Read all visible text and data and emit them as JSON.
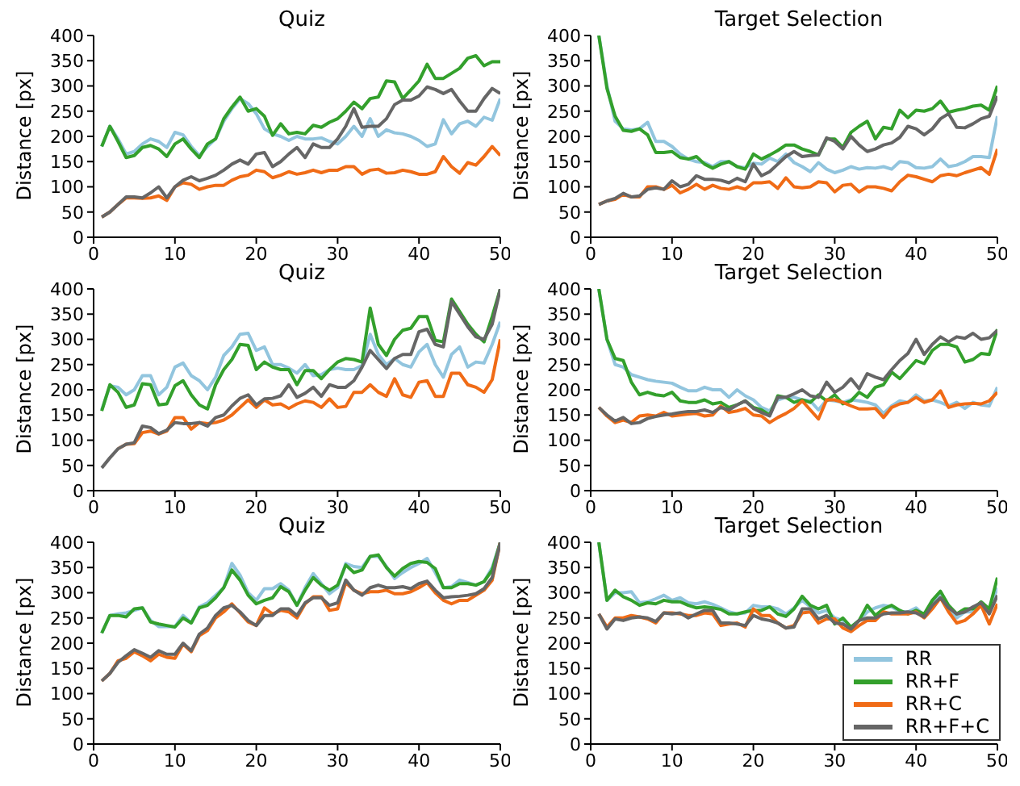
{
  "chart_data": [
    {
      "type": "line",
      "title": "Quiz",
      "ylabel": "Distance [px]",
      "x": [
        1,
        2,
        3,
        4,
        5,
        6,
        7,
        8,
        9,
        10,
        11,
        12,
        13,
        14,
        15,
        16,
        17,
        18,
        19,
        20,
        21,
        22,
        23,
        24,
        25,
        26,
        27,
        28,
        29,
        30,
        31,
        32,
        33,
        34,
        35,
        36,
        37,
        38,
        39,
        40,
        41,
        42,
        43,
        44,
        45,
        46,
        47,
        48,
        49,
        50
      ],
      "xlim": [
        0,
        50
      ],
      "xticks": [
        0,
        10,
        20,
        30,
        40,
        50
      ],
      "ylim": [
        0,
        400
      ],
      "yticks": [
        0,
        50,
        100,
        150,
        200,
        250,
        300,
        350,
        400
      ],
      "grid": false,
      "legend": false,
      "marker": "none",
      "line_style": "solid",
      "series": [
        {
          "color": "#92c5de",
          "values": [
            180,
            220,
            195,
            165,
            170,
            185,
            195,
            190,
            178,
            208,
            203,
            180,
            162,
            180,
            195,
            230,
            255,
            275,
            265,
            245,
            215,
            205,
            200,
            192,
            200,
            195,
            195,
            197,
            190,
            185,
            200,
            220,
            200,
            235,
            200,
            213,
            207,
            205,
            200,
            192,
            180,
            185,
            233,
            205,
            225,
            230,
            220,
            238,
            232,
            275
          ]
        },
        {
          "color": "#33a02c",
          "values": [
            180,
            220,
            190,
            158,
            162,
            178,
            182,
            175,
            160,
            185,
            195,
            175,
            158,
            185,
            195,
            235,
            258,
            278,
            250,
            255,
            240,
            202,
            225,
            205,
            208,
            205,
            222,
            218,
            228,
            235,
            250,
            268,
            255,
            275,
            278,
            310,
            308,
            275,
            292,
            310,
            343,
            315,
            315,
            325,
            335,
            355,
            360,
            340,
            348,
            348
          ]
        },
        {
          "color": "#f06b16",
          "values": [
            40,
            50,
            65,
            78,
            78,
            77,
            78,
            82,
            73,
            100,
            108,
            105,
            95,
            100,
            103,
            103,
            113,
            120,
            123,
            133,
            130,
            118,
            123,
            130,
            125,
            128,
            133,
            128,
            133,
            133,
            140,
            140,
            125,
            133,
            135,
            127,
            128,
            133,
            130,
            125,
            125,
            130,
            160,
            140,
            127,
            148,
            143,
            160,
            180,
            162
          ]
        },
        {
          "color": "#666666",
          "values": [
            40,
            50,
            65,
            80,
            80,
            78,
            88,
            100,
            78,
            100,
            113,
            120,
            112,
            117,
            123,
            133,
            145,
            153,
            145,
            165,
            168,
            140,
            150,
            165,
            178,
            158,
            185,
            178,
            178,
            195,
            220,
            255,
            218,
            220,
            220,
            235,
            263,
            272,
            272,
            280,
            298,
            293,
            285,
            293,
            270,
            250,
            250,
            275,
            295,
            285
          ]
        }
      ]
    },
    {
      "type": "line",
      "title": "Target Selection",
      "ylabel": "Distance [px]",
      "x": [
        1,
        2,
        3,
        4,
        5,
        6,
        7,
        8,
        9,
        10,
        11,
        12,
        13,
        14,
        15,
        16,
        17,
        18,
        19,
        20,
        21,
        22,
        23,
        24,
        25,
        26,
        27,
        28,
        29,
        30,
        31,
        32,
        33,
        34,
        35,
        36,
        37,
        38,
        39,
        40,
        41,
        42,
        43,
        44,
        45,
        46,
        47,
        48,
        49,
        50
      ],
      "xlim": [
        0,
        50
      ],
      "xticks": [
        0,
        10,
        20,
        30,
        40,
        50
      ],
      "ylim": [
        0,
        400
      ],
      "yticks": [
        0,
        50,
        100,
        150,
        200,
        250,
        300,
        350,
        400
      ],
      "grid": false,
      "legend": false,
      "marker": "none",
      "line_style": "solid",
      "series": [
        {
          "color": "#92c5de",
          "values": [
            400,
            300,
            230,
            215,
            213,
            215,
            228,
            190,
            190,
            180,
            165,
            155,
            150,
            148,
            140,
            150,
            150,
            140,
            138,
            147,
            145,
            157,
            150,
            165,
            148,
            140,
            130,
            148,
            135,
            128,
            133,
            140,
            135,
            138,
            137,
            140,
            135,
            150,
            148,
            138,
            137,
            140,
            155,
            140,
            143,
            150,
            160,
            160,
            158,
            240
          ]
        },
        {
          "color": "#33a02c",
          "values": [
            400,
            295,
            240,
            212,
            210,
            215,
            203,
            168,
            168,
            170,
            158,
            155,
            160,
            145,
            137,
            145,
            150,
            140,
            135,
            165,
            155,
            163,
            172,
            183,
            183,
            175,
            170,
            163,
            195,
            195,
            178,
            208,
            220,
            230,
            195,
            218,
            215,
            252,
            237,
            252,
            250,
            255,
            270,
            248,
            252,
            255,
            260,
            262,
            252,
            300
          ]
        },
        {
          "color": "#f06b16",
          "values": [
            65,
            72,
            75,
            85,
            80,
            80,
            100,
            100,
            95,
            103,
            88,
            95,
            105,
            95,
            103,
            97,
            95,
            100,
            95,
            108,
            108,
            110,
            97,
            118,
            100,
            98,
            100,
            110,
            108,
            90,
            103,
            105,
            90,
            100,
            100,
            97,
            92,
            110,
            123,
            120,
            115,
            110,
            122,
            125,
            122,
            128,
            133,
            138,
            125,
            175
          ]
        },
        {
          "color": "#666666",
          "values": [
            65,
            72,
            77,
            87,
            80,
            82,
            95,
            98,
            95,
            112,
            100,
            105,
            122,
            115,
            115,
            113,
            108,
            117,
            110,
            145,
            122,
            130,
            145,
            160,
            170,
            160,
            162,
            163,
            197,
            190,
            175,
            200,
            183,
            170,
            175,
            183,
            187,
            198,
            220,
            215,
            203,
            215,
            235,
            245,
            218,
            217,
            225,
            235,
            240,
            280
          ]
        }
      ]
    },
    {
      "type": "line",
      "title": "Quiz",
      "ylabel": "Distance [px]",
      "x": [
        1,
        2,
        3,
        4,
        5,
        6,
        7,
        8,
        9,
        10,
        11,
        12,
        13,
        14,
        15,
        16,
        17,
        18,
        19,
        20,
        21,
        22,
        23,
        24,
        25,
        26,
        27,
        28,
        29,
        30,
        31,
        32,
        33,
        34,
        35,
        36,
        37,
        38,
        39,
        40,
        41,
        42,
        43,
        44,
        45,
        46,
        47,
        48,
        49,
        50
      ],
      "xlim": [
        0,
        50
      ],
      "xticks": [
        0,
        10,
        20,
        30,
        40,
        50
      ],
      "ylim": [
        0,
        400
      ],
      "yticks": [
        0,
        50,
        100,
        150,
        200,
        250,
        300,
        350,
        400
      ],
      "grid": false,
      "legend": false,
      "marker": "none",
      "line_style": "solid",
      "series": [
        {
          "color": "#92c5de",
          "values": [
            160,
            208,
            205,
            190,
            200,
            228,
            228,
            190,
            205,
            245,
            253,
            228,
            218,
            200,
            225,
            268,
            285,
            310,
            312,
            278,
            285,
            250,
            250,
            243,
            233,
            250,
            228,
            230,
            240,
            243,
            240,
            240,
            248,
            310,
            270,
            250,
            262,
            250,
            245,
            275,
            290,
            250,
            225,
            270,
            285,
            245,
            255,
            253,
            290,
            335
          ]
        },
        {
          "color": "#33a02c",
          "values": [
            158,
            210,
            195,
            165,
            170,
            212,
            210,
            170,
            172,
            208,
            218,
            190,
            170,
            162,
            210,
            240,
            260,
            290,
            288,
            240,
            255,
            245,
            240,
            240,
            210,
            238,
            238,
            222,
            240,
            255,
            262,
            260,
            255,
            362,
            290,
            268,
            300,
            318,
            322,
            345,
            345,
            298,
            295,
            380,
            355,
            330,
            310,
            295,
            345,
            400
          ]
        },
        {
          "color": "#f06b16",
          "values": [
            null,
            null,
            83,
            92,
            93,
            115,
            118,
            112,
            118,
            145,
            145,
            122,
            135,
            133,
            135,
            140,
            150,
            165,
            180,
            165,
            180,
            170,
            172,
            163,
            172,
            178,
            175,
            165,
            182,
            165,
            167,
            195,
            195,
            210,
            195,
            187,
            222,
            190,
            185,
            215,
            218,
            187,
            187,
            233,
            233,
            210,
            205,
            195,
            220,
            300
          ]
        },
        {
          "color": "#666666",
          "values": [
            45,
            65,
            83,
            92,
            95,
            128,
            125,
            113,
            120,
            135,
            133,
            133,
            135,
            128,
            145,
            150,
            168,
            183,
            190,
            170,
            182,
            183,
            188,
            210,
            185,
            193,
            205,
            187,
            210,
            205,
            205,
            218,
            245,
            278,
            260,
            242,
            262,
            270,
            270,
            315,
            320,
            290,
            285,
            375,
            350,
            325,
            305,
            300,
            330,
            400
          ]
        }
      ]
    },
    {
      "type": "line",
      "title": "Target Selection",
      "ylabel": "Distance [px]",
      "x": [
        1,
        2,
        3,
        4,
        5,
        6,
        7,
        8,
        9,
        10,
        11,
        12,
        13,
        14,
        15,
        16,
        17,
        18,
        19,
        20,
        21,
        22,
        23,
        24,
        25,
        26,
        27,
        28,
        29,
        30,
        31,
        32,
        33,
        34,
        35,
        36,
        37,
        38,
        39,
        40,
        41,
        42,
        43,
        44,
        45,
        46,
        47,
        48,
        49,
        50
      ],
      "xlim": [
        0,
        50
      ],
      "xticks": [
        0,
        10,
        20,
        30,
        40,
        50
      ],
      "ylim": [
        0,
        400
      ],
      "yticks": [
        0,
        50,
        100,
        150,
        200,
        250,
        300,
        350,
        400
      ],
      "grid": false,
      "legend": false,
      "marker": "none",
      "line_style": "solid",
      "series": [
        {
          "color": "#92c5de",
          "values": [
            400,
            300,
            250,
            245,
            230,
            225,
            220,
            217,
            215,
            213,
            205,
            198,
            198,
            205,
            200,
            200,
            185,
            200,
            188,
            180,
            165,
            158,
            180,
            185,
            185,
            180,
            178,
            160,
            180,
            178,
            175,
            180,
            178,
            175,
            170,
            153,
            168,
            178,
            175,
            190,
            178,
            180,
            175,
            168,
            175,
            163,
            175,
            170,
            168,
            205
          ]
        },
        {
          "color": "#33a02c",
          "values": [
            400,
            300,
            262,
            258,
            215,
            190,
            195,
            190,
            188,
            195,
            178,
            175,
            175,
            180,
            172,
            175,
            165,
            170,
            178,
            165,
            160,
            150,
            188,
            185,
            175,
            180,
            175,
            190,
            178,
            190,
            172,
            178,
            195,
            185,
            205,
            210,
            235,
            222,
            240,
            258,
            252,
            278,
            290,
            290,
            285,
            255,
            260,
            272,
            270,
            320
          ]
        },
        {
          "color": "#f06b16",
          "values": [
            165,
            148,
            135,
            140,
            135,
            148,
            150,
            148,
            155,
            148,
            150,
            152,
            153,
            148,
            150,
            168,
            155,
            158,
            163,
            150,
            148,
            135,
            145,
            153,
            163,
            178,
            160,
            142,
            180,
            180,
            175,
            168,
            162,
            162,
            163,
            145,
            165,
            172,
            175,
            185,
            175,
            180,
            198,
            165,
            170,
            172,
            173,
            172,
            178,
            195
          ]
        },
        {
          "color": "#666666",
          "values": [
            165,
            150,
            138,
            145,
            133,
            135,
            143,
            147,
            150,
            152,
            155,
            157,
            157,
            160,
            155,
            165,
            160,
            170,
            178,
            163,
            155,
            148,
            185,
            185,
            192,
            200,
            188,
            185,
            215,
            195,
            205,
            222,
            202,
            232,
            225,
            220,
            240,
            258,
            272,
            300,
            270,
            290,
            305,
            295,
            305,
            302,
            312,
            300,
            303,
            318
          ]
        }
      ]
    },
    {
      "type": "line",
      "title": "Quiz",
      "ylabel": "Distance [px]",
      "x": [
        1,
        2,
        3,
        4,
        5,
        6,
        7,
        8,
        9,
        10,
        11,
        12,
        13,
        14,
        15,
        16,
        17,
        18,
        19,
        20,
        21,
        22,
        23,
        24,
        25,
        26,
        27,
        28,
        29,
        30,
        31,
        32,
        33,
        34,
        35,
        36,
        37,
        38,
        39,
        40,
        41,
        42,
        43,
        44,
        45,
        46,
        47,
        48,
        49,
        50
      ],
      "xlim": [
        0,
        50
      ],
      "xticks": [
        0,
        10,
        20,
        30,
        40,
        50
      ],
      "ylim": [
        0,
        400
      ],
      "yticks": [
        0,
        50,
        100,
        150,
        200,
        250,
        300,
        350,
        400
      ],
      "grid": false,
      "legend": false,
      "marker": "none",
      "line_style": "solid",
      "series": [
        {
          "color": "#92c5de",
          "values": [
            220,
            255,
            258,
            260,
            265,
            270,
            245,
            233,
            233,
            233,
            255,
            240,
            272,
            280,
            295,
            310,
            358,
            335,
            300,
            285,
            308,
            308,
            318,
            305,
            275,
            310,
            338,
            318,
            298,
            310,
            358,
            352,
            350,
            372,
            372,
            352,
            328,
            340,
            350,
            358,
            368,
            340,
            310,
            312,
            325,
            320,
            315,
            322,
            350,
            400
          ]
        },
        {
          "color": "#33a02c",
          "values": [
            220,
            255,
            255,
            252,
            268,
            270,
            242,
            238,
            235,
            232,
            250,
            240,
            270,
            275,
            290,
            310,
            345,
            325,
            295,
            278,
            285,
            290,
            312,
            302,
            275,
            305,
            330,
            315,
            305,
            315,
            355,
            340,
            345,
            372,
            375,
            350,
            333,
            348,
            358,
            362,
            360,
            348,
            310,
            310,
            318,
            318,
            315,
            322,
            345,
            400
          ]
        },
        {
          "color": "#f06b16",
          "values": [
            125,
            140,
            165,
            170,
            183,
            175,
            165,
            178,
            172,
            170,
            198,
            183,
            215,
            225,
            250,
            262,
            278,
            260,
            242,
            235,
            270,
            258,
            265,
            262,
            250,
            278,
            292,
            292,
            265,
            268,
            320,
            305,
            298,
            302,
            302,
            305,
            298,
            298,
            302,
            310,
            320,
            300,
            285,
            278,
            285,
            285,
            295,
            305,
            325,
            400
          ]
        },
        {
          "color": "#666666",
          "values": [
            125,
            140,
            162,
            175,
            187,
            180,
            172,
            185,
            178,
            178,
            200,
            185,
            218,
            230,
            255,
            270,
            275,
            262,
            245,
            235,
            255,
            255,
            268,
            268,
            255,
            280,
            290,
            290,
            275,
            280,
            325,
            305,
            295,
            310,
            315,
            310,
            310,
            312,
            308,
            318,
            323,
            305,
            290,
            292,
            293,
            295,
            298,
            308,
            330,
            400
          ]
        }
      ]
    },
    {
      "type": "line",
      "title": "Target Selection",
      "ylabel": "Distance [px]",
      "x": [
        1,
        2,
        3,
        4,
        5,
        6,
        7,
        8,
        9,
        10,
        11,
        12,
        13,
        14,
        15,
        16,
        17,
        18,
        19,
        20,
        21,
        22,
        23,
        24,
        25,
        26,
        27,
        28,
        29,
        30,
        31,
        32,
        33,
        34,
        35,
        36,
        37,
        38,
        39,
        40,
        41,
        42,
        43,
        44,
        45,
        46,
        47,
        48,
        49,
        50
      ],
      "xlim": [
        0,
        50
      ],
      "xticks": [
        0,
        10,
        20,
        30,
        40,
        50
      ],
      "ylim": [
        0,
        400
      ],
      "yticks": [
        0,
        50,
        100,
        150,
        200,
        250,
        300,
        350,
        400
      ],
      "grid": false,
      "legend": "bottom right",
      "marker": "none",
      "line_style": "solid",
      "series": [
        {
          "name": "RR",
          "color": "#92c5de",
          "values": [
            400,
            285,
            300,
            300,
            302,
            280,
            282,
            288,
            295,
            285,
            290,
            280,
            278,
            282,
            277,
            270,
            262,
            258,
            260,
            275,
            272,
            272,
            268,
            258,
            270,
            285,
            272,
            260,
            265,
            250,
            245,
            232,
            245,
            262,
            270,
            275,
            272,
            263,
            262,
            270,
            255,
            282,
            295,
            270,
            250,
            262,
            262,
            280,
            265,
            310
          ]
        },
        {
          "name": "RR+F",
          "color": "#33a02c",
          "values": [
            400,
            285,
            305,
            292,
            285,
            275,
            280,
            278,
            285,
            282,
            282,
            275,
            270,
            272,
            270,
            267,
            258,
            258,
            262,
            265,
            265,
            272,
            258,
            253,
            268,
            293,
            275,
            268,
            275,
            238,
            250,
            232,
            245,
            275,
            255,
            268,
            275,
            265,
            258,
            265,
            258,
            285,
            303,
            275,
            258,
            268,
            268,
            282,
            268,
            330
          ]
        },
        {
          "name": "RR+C",
          "color": "#f06b16",
          "values": [
            258,
            232,
            250,
            250,
            255,
            252,
            248,
            240,
            260,
            260,
            258,
            255,
            255,
            260,
            258,
            235,
            238,
            240,
            232,
            268,
            255,
            255,
            240,
            230,
            235,
            260,
            262,
            240,
            248,
            248,
            230,
            223,
            235,
            245,
            245,
            262,
            258,
            258,
            258,
            262,
            250,
            268,
            290,
            262,
            240,
            245,
            258,
            275,
            238,
            278
          ]
        },
        {
          "name": "RR+F+C",
          "color": "#666666",
          "values": [
            258,
            228,
            248,
            245,
            250,
            252,
            250,
            243,
            260,
            258,
            260,
            250,
            258,
            265,
            265,
            240,
            240,
            238,
            235,
            255,
            248,
            245,
            240,
            230,
            232,
            268,
            268,
            248,
            255,
            240,
            238,
            228,
            245,
            250,
            250,
            258,
            260,
            260,
            262,
            260,
            252,
            275,
            290,
            270,
            258,
            262,
            272,
            280,
            258,
            295
          ]
        }
      ]
    }
  ]
}
